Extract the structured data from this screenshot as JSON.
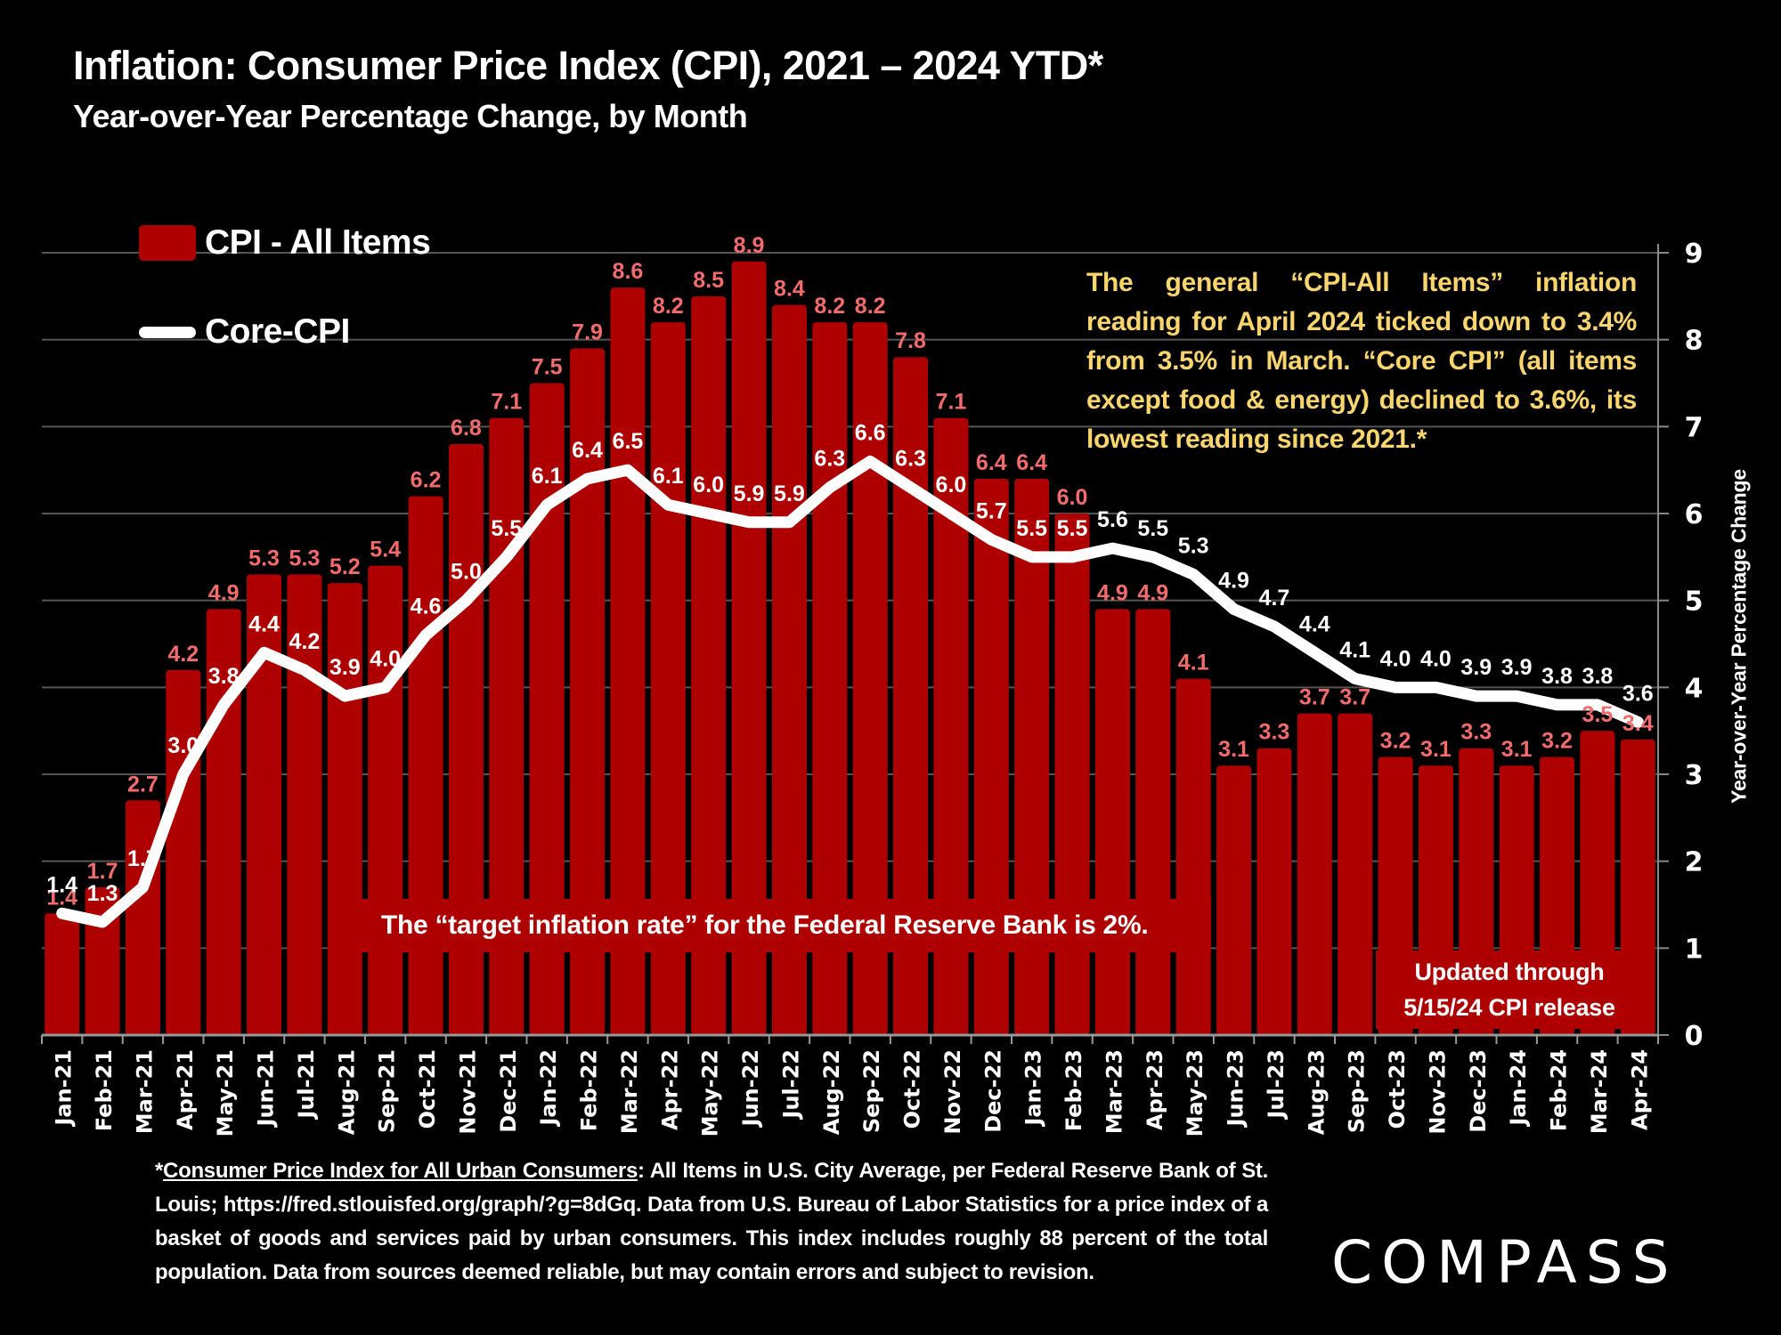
{
  "header": {
    "title": "Inflation: Consumer Price Index (CPI), 2021 – 2024 YTD*",
    "subtitle": "Year-over-Year Percentage Change, by Month"
  },
  "legend": {
    "items": [
      {
        "label": "CPI - All Items",
        "type": "bar"
      },
      {
        "label": "Core-CPI",
        "type": "line"
      }
    ]
  },
  "annotations": {
    "note": "The general “CPI-All Items” inflation reading for April 2024 ticked down to 3.4% from 3.5% in March. “Core CPI” (all items except food & energy) declined to 3.6%, its lowest reading since 2021.*",
    "target": "The “target inflation rate” for the Federal Reserve Bank is 2%.",
    "updated_line1": "Updated through",
    "updated_line2": "5/15/24 CPI release"
  },
  "footnote": {
    "underlined": "Consumer Price Index for All Urban Consumers",
    "prefix": "*",
    "rest": ": All Items in U.S. City Average, per Federal Reserve Bank of St. Louis; https://fred.stlouisfed.org/graph/?g=8dGq. Data from U.S. Bureau of Labor Statistics for a price index of a basket of goods and services paid by urban consumers. This index includes roughly 88 percent of the total population. Data from sources deemed reliable, but may contain errors and subject to revision."
  },
  "logo": {
    "text": "COMPASS"
  },
  "colors": {
    "bar": "#ae0000",
    "bar_label": "#f46b6b",
    "line": "#ffffff",
    "line_label": "#ffffff",
    "note": "#f9d56e",
    "grid": "#555555",
    "background": "#000000"
  },
  "chart_data": {
    "type": "bar",
    "title": "Inflation: Consumer Price Index (CPI), 2021 – 2024 YTD*",
    "subtitle": "Year-over-Year Percentage Change, by Month",
    "xlabel": "",
    "ylabel": "Year-over-Year Percentage Change",
    "ylim": [
      0,
      9
    ],
    "yticks": [
      0,
      1,
      2,
      3,
      4,
      5,
      6,
      7,
      8,
      9
    ],
    "y_axis_side": "right",
    "grid": true,
    "legend_position": "top-left",
    "categories": [
      "Jan-21",
      "Feb-21",
      "Mar-21",
      "Apr-21",
      "May-21",
      "Jun-21",
      "Jul-21",
      "Aug-21",
      "Sep-21",
      "Oct-21",
      "Nov-21",
      "Dec-21",
      "Jan-22",
      "Feb-22",
      "Mar-22",
      "Apr-22",
      "May-22",
      "Jun-22",
      "Jul-22",
      "Aug-22",
      "Sep-22",
      "Oct-22",
      "Nov-22",
      "Dec-22",
      "Jan-23",
      "Feb-23",
      "Mar-23",
      "Apr-23",
      "May-23",
      "Jun-23",
      "Jul-23",
      "Aug-23",
      "Sep-23",
      "Oct-23",
      "Nov-23",
      "Dec-23",
      "Jan-24",
      "Feb-24",
      "Mar-24",
      "Apr-24"
    ],
    "series": [
      {
        "name": "CPI - All Items",
        "type": "bar",
        "values": [
          1.4,
          1.7,
          2.7,
          4.2,
          4.9,
          5.3,
          5.3,
          5.2,
          5.4,
          6.2,
          6.8,
          7.1,
          7.5,
          7.9,
          8.6,
          8.2,
          8.5,
          8.9,
          8.4,
          8.2,
          8.2,
          7.8,
          7.1,
          6.4,
          6.4,
          6.0,
          4.9,
          4.9,
          4.1,
          3.1,
          3.3,
          3.7,
          3.7,
          3.2,
          3.1,
          3.3,
          3.1,
          3.2,
          3.5,
          3.4
        ]
      },
      {
        "name": "Core-CPI",
        "type": "line",
        "values": [
          1.4,
          1.3,
          1.7,
          3.0,
          3.8,
          4.4,
          4.2,
          3.9,
          4.0,
          4.6,
          5.0,
          5.5,
          6.1,
          6.4,
          6.5,
          6.1,
          6.0,
          5.9,
          5.9,
          6.3,
          6.6,
          6.3,
          6.0,
          5.7,
          5.5,
          5.5,
          5.6,
          5.5,
          5.3,
          4.9,
          4.7,
          4.4,
          4.1,
          4.0,
          4.0,
          3.9,
          3.9,
          3.8,
          3.8,
          3.6
        ]
      }
    ]
  }
}
